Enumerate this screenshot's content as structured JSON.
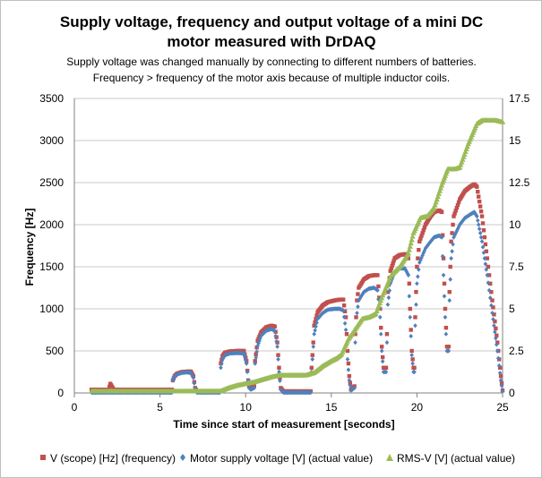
{
  "chart_data": {
    "type": "scatter",
    "title_line1": "Supply voltage, frequency and output voltage of a mini DC",
    "title_line2": "motor measured with DrDAQ",
    "subtitle_line1": "Supply voltage was changed manually by connecting to different numbers of batteries.",
    "subtitle_line2": "Frequency > frequency of the motor axis because of multiple inductor coils.",
    "xlabel": "Time since start of measurement [seconds]",
    "ylabel": "Frequency [Hz]",
    "xlim": [
      0,
      25
    ],
    "ylim": [
      0,
      3500
    ],
    "y2lim": [
      0,
      17.5
    ],
    "x_ticks": [
      "0",
      "5",
      "10",
      "15",
      "20",
      "25"
    ],
    "y_ticks": [
      "0",
      "500",
      "1000",
      "1500",
      "2000",
      "2500",
      "3000",
      "3500"
    ],
    "y2_ticks": [
      "0",
      "2.5",
      "5",
      "7.5",
      "10",
      "12.5",
      "15",
      "17.5"
    ],
    "grid": true,
    "legend_position": "bottom",
    "series": [
      {
        "name": "V (scope) [Hz] (frequency)",
        "color": "#c0504d",
        "marker": "square",
        "axis": "left",
        "points": [
          [
            1.0,
            40
          ],
          [
            1.5,
            40
          ],
          [
            2.0,
            40
          ],
          [
            2.1,
            110
          ],
          [
            2.3,
            40
          ],
          [
            3.0,
            40
          ],
          [
            4.0,
            40
          ],
          [
            5.0,
            40
          ],
          [
            5.5,
            40
          ],
          [
            5.7,
            40
          ],
          [
            5.75,
            150
          ],
          [
            5.85,
            200
          ],
          [
            6.0,
            230
          ],
          [
            6.3,
            250
          ],
          [
            6.6,
            255
          ],
          [
            6.8,
            255
          ],
          [
            6.95,
            200
          ],
          [
            7.05,
            60
          ],
          [
            7.15,
            20
          ],
          [
            7.5,
            20
          ],
          [
            8.0,
            20
          ],
          [
            8.4,
            20
          ],
          [
            8.5,
            20
          ],
          [
            8.55,
            350
          ],
          [
            8.65,
            440
          ],
          [
            8.8,
            480
          ],
          [
            9.1,
            495
          ],
          [
            9.5,
            500
          ],
          [
            9.9,
            500
          ],
          [
            10.05,
            380
          ],
          [
            10.15,
            150
          ],
          [
            10.2,
            80
          ],
          [
            10.3,
            60
          ],
          [
            10.5,
            80
          ],
          [
            10.55,
            380
          ],
          [
            10.7,
            620
          ],
          [
            10.9,
            720
          ],
          [
            11.2,
            780
          ],
          [
            11.5,
            800
          ],
          [
            11.7,
            790
          ],
          [
            11.85,
            600
          ],
          [
            11.95,
            300
          ],
          [
            12.05,
            60
          ],
          [
            12.2,
            20
          ],
          [
            12.8,
            20
          ],
          [
            13.3,
            20
          ],
          [
            13.7,
            20
          ],
          [
            13.8,
            20
          ],
          [
            13.85,
            300
          ],
          [
            13.95,
            600
          ],
          [
            14.0,
            800
          ],
          [
            14.2,
            960
          ],
          [
            14.5,
            1040
          ],
          [
            14.8,
            1080
          ],
          [
            15.2,
            1100
          ],
          [
            15.5,
            1110
          ],
          [
            15.7,
            1110
          ],
          [
            15.85,
            900
          ],
          [
            15.95,
            500
          ],
          [
            16.05,
            200
          ],
          [
            16.15,
            40
          ],
          [
            16.35,
            80
          ],
          [
            16.4,
            700
          ],
          [
            16.5,
            1100
          ],
          [
            16.6,
            1250
          ],
          [
            16.9,
            1350
          ],
          [
            17.2,
            1390
          ],
          [
            17.5,
            1400
          ],
          [
            17.7,
            1400
          ],
          [
            17.85,
            1000
          ],
          [
            17.95,
            550
          ],
          [
            18.05,
            300
          ],
          [
            18.2,
            300
          ],
          [
            18.25,
            700
          ],
          [
            18.3,
            1200
          ],
          [
            18.45,
            1450
          ],
          [
            18.7,
            1600
          ],
          [
            19.0,
            1640
          ],
          [
            19.3,
            1650
          ],
          [
            19.5,
            1600
          ],
          [
            19.6,
            1000
          ],
          [
            19.7,
            500
          ],
          [
            19.8,
            300
          ],
          [
            19.85,
            300
          ],
          [
            19.9,
            900
          ],
          [
            20.0,
            1500
          ],
          [
            20.15,
            1800
          ],
          [
            20.5,
            2000
          ],
          [
            20.8,
            2100
          ],
          [
            21.0,
            2150
          ],
          [
            21.3,
            2170
          ],
          [
            21.45,
            2150
          ],
          [
            21.55,
            1600
          ],
          [
            21.65,
            1000
          ],
          [
            21.75,
            550
          ],
          [
            21.85,
            550
          ],
          [
            21.9,
            1200
          ],
          [
            22.0,
            1800
          ],
          [
            22.15,
            2100
          ],
          [
            22.5,
            2300
          ],
          [
            22.8,
            2400
          ],
          [
            23.1,
            2450
          ],
          [
            23.35,
            2480
          ],
          [
            23.5,
            2450
          ],
          [
            23.8,
            2100
          ],
          [
            24.1,
            1600
          ],
          [
            24.4,
            1100
          ],
          [
            24.7,
            600
          ],
          [
            24.9,
            200
          ],
          [
            25.0,
            30
          ]
        ]
      },
      {
        "name": "Motor supply voltage [V] (actual value)",
        "color": "#4f81bd",
        "marker": "diamond",
        "axis": "left",
        "points": [
          [
            1.0,
            5
          ],
          [
            2.0,
            5
          ],
          [
            3.0,
            5
          ],
          [
            4.0,
            5
          ],
          [
            5.0,
            5
          ],
          [
            5.5,
            5
          ],
          [
            5.7,
            5
          ],
          [
            5.75,
            150
          ],
          [
            5.85,
            200
          ],
          [
            6.0,
            220
          ],
          [
            6.3,
            240
          ],
          [
            6.6,
            245
          ],
          [
            6.8,
            240
          ],
          [
            6.95,
            180
          ],
          [
            7.05,
            50
          ],
          [
            7.15,
            5
          ],
          [
            8.0,
            5
          ],
          [
            8.4,
            5
          ],
          [
            8.5,
            5
          ],
          [
            8.55,
            300
          ],
          [
            8.65,
            400
          ],
          [
            8.8,
            450
          ],
          [
            9.1,
            470
          ],
          [
            9.5,
            475
          ],
          [
            9.9,
            470
          ],
          [
            10.05,
            350
          ],
          [
            10.15,
            150
          ],
          [
            10.2,
            60
          ],
          [
            10.3,
            40
          ],
          [
            10.5,
            60
          ],
          [
            10.55,
            350
          ],
          [
            10.7,
            560
          ],
          [
            10.9,
            680
          ],
          [
            11.2,
            740
          ],
          [
            11.5,
            760
          ],
          [
            11.7,
            740
          ],
          [
            11.85,
            550
          ],
          [
            11.95,
            250
          ],
          [
            12.05,
            40
          ],
          [
            12.2,
            5
          ],
          [
            13.0,
            5
          ],
          [
            13.7,
            5
          ],
          [
            13.8,
            5
          ],
          [
            13.85,
            250
          ],
          [
            13.95,
            550
          ],
          [
            14.0,
            700
          ],
          [
            14.2,
            880
          ],
          [
            14.5,
            950
          ],
          [
            14.8,
            990
          ],
          [
            15.2,
            1000
          ],
          [
            15.5,
            1000
          ],
          [
            15.7,
            980
          ],
          [
            15.85,
            750
          ],
          [
            15.95,
            400
          ],
          [
            16.05,
            150
          ],
          [
            16.15,
            30
          ],
          [
            16.35,
            60
          ],
          [
            16.4,
            600
          ],
          [
            16.5,
            950
          ],
          [
            16.6,
            1100
          ],
          [
            16.9,
            1200
          ],
          [
            17.2,
            1240
          ],
          [
            17.5,
            1250
          ],
          [
            17.7,
            1220
          ],
          [
            17.85,
            900
          ],
          [
            17.95,
            500
          ],
          [
            18.05,
            250
          ],
          [
            18.2,
            250
          ],
          [
            18.25,
            600
          ],
          [
            18.3,
            1050
          ],
          [
            18.45,
            1300
          ],
          [
            18.7,
            1440
          ],
          [
            19.0,
            1480
          ],
          [
            19.3,
            1480
          ],
          [
            19.5,
            1400
          ],
          [
            19.6,
            900
          ],
          [
            19.7,
            450
          ],
          [
            19.8,
            250
          ],
          [
            19.85,
            250
          ],
          [
            19.9,
            800
          ],
          [
            20.0,
            1300
          ],
          [
            20.15,
            1550
          ],
          [
            20.5,
            1720
          ],
          [
            20.8,
            1800
          ],
          [
            21.0,
            1850
          ],
          [
            21.3,
            1870
          ],
          [
            21.45,
            1850
          ],
          [
            21.55,
            1400
          ],
          [
            21.65,
            900
          ],
          [
            21.75,
            500
          ],
          [
            21.85,
            500
          ],
          [
            21.9,
            1100
          ],
          [
            22.0,
            1600
          ],
          [
            22.15,
            1850
          ],
          [
            22.5,
            2000
          ],
          [
            22.8,
            2080
          ],
          [
            23.1,
            2120
          ],
          [
            23.35,
            2150
          ],
          [
            23.5,
            2100
          ],
          [
            23.8,
            1800
          ],
          [
            24.1,
            1400
          ],
          [
            24.4,
            950
          ],
          [
            24.7,
            500
          ],
          [
            24.9,
            150
          ],
          [
            25.0,
            20
          ]
        ]
      },
      {
        "name": "RMS-V [V] (actual value)",
        "color": "#9bbb59",
        "marker": "triangle",
        "axis": "right",
        "points": [
          [
            1.0,
            0.1
          ],
          [
            2.0,
            0.1
          ],
          [
            3.0,
            0.1
          ],
          [
            4.0,
            0.1
          ],
          [
            5.0,
            0.1
          ],
          [
            5.5,
            0.1
          ],
          [
            6.0,
            0.1
          ],
          [
            6.5,
            0.1
          ],
          [
            7.0,
            0.1
          ],
          [
            7.5,
            0.1
          ],
          [
            8.0,
            0.1
          ],
          [
            8.5,
            0.1
          ],
          [
            9.0,
            0.3
          ],
          [
            9.5,
            0.45
          ],
          [
            10.0,
            0.55
          ],
          [
            10.5,
            0.65
          ],
          [
            11.0,
            0.8
          ],
          [
            11.5,
            0.95
          ],
          [
            12.0,
            1.05
          ],
          [
            12.5,
            1.05
          ],
          [
            13.0,
            1.05
          ],
          [
            13.5,
            1.05
          ],
          [
            14.0,
            1.2
          ],
          [
            14.5,
            1.6
          ],
          [
            15.0,
            1.9
          ],
          [
            15.3,
            2.05
          ],
          [
            15.6,
            2.3
          ],
          [
            16.0,
            3.2
          ],
          [
            16.4,
            3.8
          ],
          [
            16.8,
            4.4
          ],
          [
            17.2,
            4.5
          ],
          [
            17.6,
            4.7
          ],
          [
            18.0,
            5.8
          ],
          [
            18.5,
            7.0
          ],
          [
            19.0,
            7.5
          ],
          [
            19.5,
            8.3
          ],
          [
            19.8,
            9.5
          ],
          [
            20.2,
            10.4
          ],
          [
            20.6,
            10.5
          ],
          [
            21.0,
            11.0
          ],
          [
            21.5,
            12.5
          ],
          [
            21.8,
            13.3
          ],
          [
            22.2,
            13.3
          ],
          [
            22.5,
            13.4
          ],
          [
            23.0,
            14.8
          ],
          [
            23.5,
            16.0
          ],
          [
            23.8,
            16.2
          ],
          [
            24.2,
            16.2
          ],
          [
            24.6,
            16.2
          ],
          [
            25.0,
            16.1
          ]
        ]
      }
    ]
  }
}
